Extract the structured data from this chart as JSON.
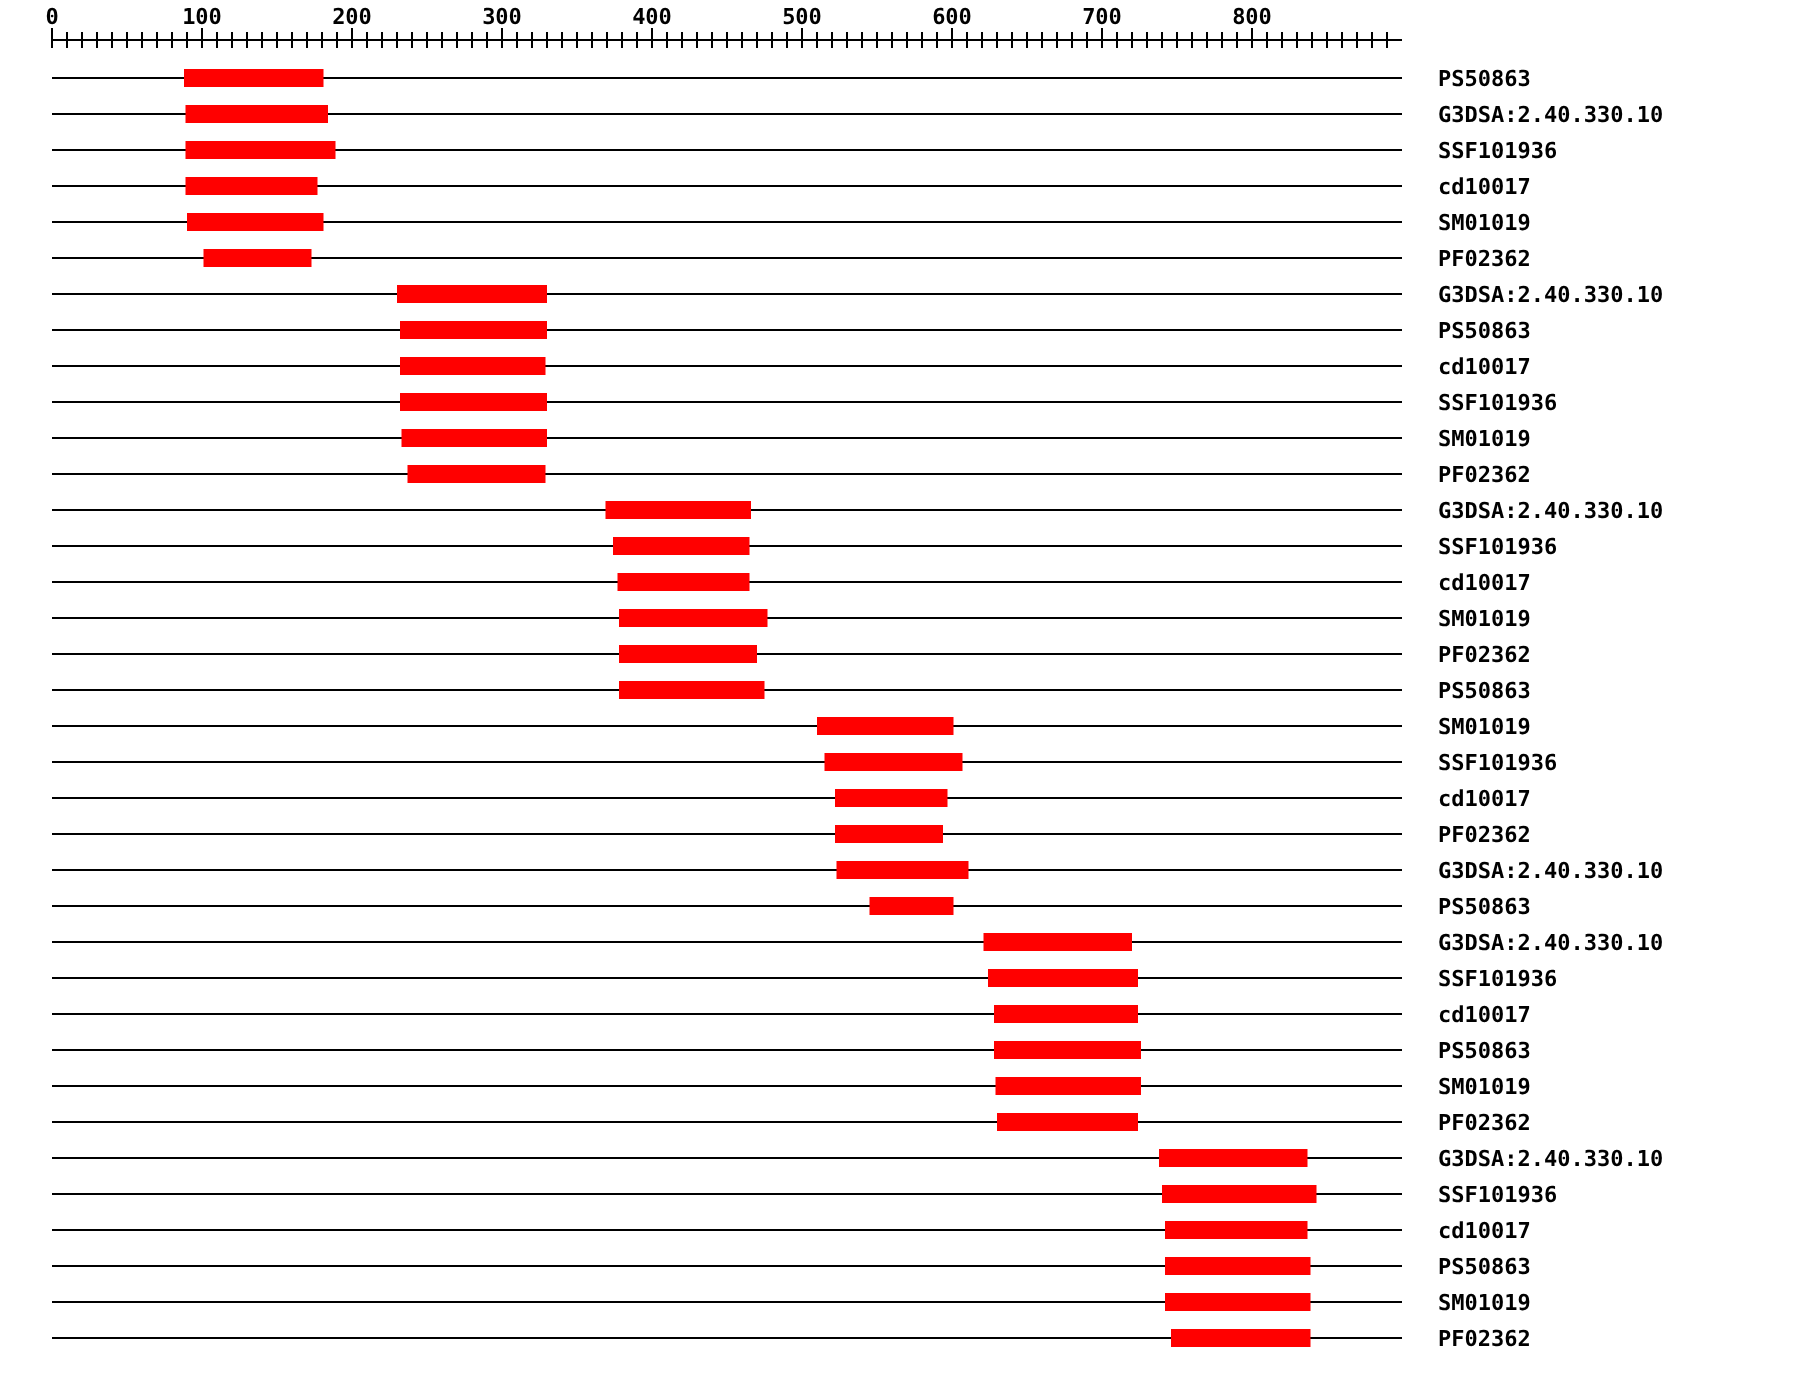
{
  "chart_data": {
    "type": "bar",
    "orientation": "horizontal",
    "categories": [
      "PS50863",
      "G3DSA:2.40.330.10",
      "SSF101936",
      "cd10017",
      "SM01019",
      "PF02362",
      "G3DSA:2.40.330.10",
      "PS50863",
      "cd10017",
      "SSF101936",
      "SM01019",
      "PF02362",
      "G3DSA:2.40.330.10",
      "SSF101936",
      "cd10017",
      "SM01019",
      "PF02362",
      "PS50863",
      "SM01019",
      "SSF101936",
      "cd10017",
      "PF02362",
      "G3DSA:2.40.330.10",
      "PS50863",
      "G3DSA:2.40.330.10",
      "SSF101936",
      "cd10017",
      "PS50863",
      "SM01019",
      "PF02362",
      "G3DSA:2.40.330.10",
      "SSF101936",
      "cd10017",
      "PS50863",
      "SM01019",
      "PF02362"
    ],
    "base": [
      88,
      89,
      89,
      89,
      90,
      101,
      230,
      232,
      232,
      232,
      233,
      237,
      369,
      374,
      377,
      378,
      378,
      378,
      510,
      515,
      522,
      522,
      523,
      545,
      621,
      624,
      628,
      628,
      629,
      630,
      738,
      740,
      742,
      742,
      742,
      746
    ],
    "values": [
      93,
      95,
      100,
      88,
      91,
      72,
      100,
      98,
      97,
      98,
      97,
      92,
      97,
      91,
      88,
      99,
      92,
      97,
      91,
      92,
      75,
      72,
      88,
      56,
      99,
      100,
      96,
      98,
      97,
      94,
      99,
      103,
      95,
      97,
      97,
      93
    ],
    "color": "#ff0000",
    "xlim": [
      0,
      900
    ],
    "xticks": [
      0,
      {
        "value": 10,
        "label": null
      },
      {
        "value": 20,
        "label": null
      },
      {
        "value": 30,
        "label": null
      },
      {
        "value": 40,
        "label": null
      },
      {
        "value": 50,
        "label": null
      },
      {
        "value": 60,
        "label": null
      },
      {
        "value": 70,
        "label": null
      },
      {
        "value": 80,
        "label": null
      },
      {
        "value": 90,
        "label": null
      },
      100,
      {
        "value": 110,
        "label": null
      },
      {
        "value": 120,
        "label": null
      },
      {
        "value": 130,
        "label": null
      },
      {
        "value": 140,
        "label": null
      },
      {
        "value": 150,
        "label": null
      },
      {
        "value": 160,
        "label": null
      },
      {
        "value": 170,
        "label": null
      },
      {
        "value": 180,
        "label": null
      },
      {
        "value": 190,
        "label": null
      },
      200,
      {
        "value": 210,
        "label": null
      },
      {
        "value": 220,
        "label": null
      },
      {
        "value": 230,
        "label": null
      },
      {
        "value": 240,
        "label": null
      },
      {
        "value": 250,
        "label": null
      },
      {
        "value": 260,
        "label": null
      },
      {
        "value": 270,
        "label": null
      },
      {
        "value": 280,
        "label": null
      },
      {
        "value": 290,
        "label": null
      },
      300,
      {
        "value": 310,
        "label": null
      },
      {
        "value": 320,
        "label": null
      },
      {
        "value": 330,
        "label": null
      },
      {
        "value": 340,
        "label": null
      },
      {
        "value": 350,
        "label": null
      },
      {
        "value": 360,
        "label": null
      },
      {
        "value": 370,
        "label": null
      },
      {
        "value": 380,
        "label": null
      },
      {
        "value": 390,
        "label": null
      },
      400,
      {
        "value": 410,
        "label": null
      },
      {
        "value": 420,
        "label": null
      },
      {
        "value": 430,
        "label": null
      },
      {
        "value": 440,
        "label": null
      },
      {
        "value": 450,
        "label": null
      },
      {
        "value": 460,
        "label": null
      },
      {
        "value": 470,
        "label": null
      },
      {
        "value": 480,
        "label": null
      },
      {
        "value": 490,
        "label": null
      },
      500,
      {
        "value": 510,
        "label": null
      },
      {
        "value": 520,
        "label": null
      },
      {
        "value": 530,
        "label": null
      },
      {
        "value": 540,
        "label": null
      },
      {
        "value": 550,
        "label": null
      },
      {
        "value": 560,
        "label": null
      },
      {
        "value": 570,
        "label": null
      },
      {
        "value": 580,
        "label": null
      },
      {
        "value": 590,
        "label": null
      },
      600,
      {
        "value": 610,
        "label": null
      },
      {
        "value": 620,
        "label": null
      },
      {
        "value": 630,
        "label": null
      },
      {
        "value": 640,
        "label": null
      },
      {
        "value": 650,
        "label": null
      },
      {
        "value": 660,
        "label": null
      },
      {
        "value": 670,
        "label": null
      },
      {
        "value": 680,
        "label": null
      },
      {
        "value": 690,
        "label": null
      },
      700,
      {
        "value": 710,
        "label": null
      },
      {
        "value": 720,
        "label": null
      },
      {
        "value": 730,
        "label": null
      },
      {
        "value": 740,
        "label": null
      },
      {
        "value": 750,
        "label": null
      },
      {
        "value": 760,
        "label": null
      },
      {
        "value": 770,
        "label": null
      },
      {
        "value": 780,
        "label": null
      },
      {
        "value": 790,
        "label": null
      },
      800,
      {
        "value": 810,
        "label": null
      },
      {
        "value": 820,
        "label": null
      },
      {
        "value": 830,
        "label": null
      },
      {
        "value": 840,
        "label": null
      },
      {
        "value": 850,
        "label": null
      },
      {
        "value": 860,
        "label": null
      },
      {
        "value": 870,
        "label": null
      },
      {
        "value": 880,
        "label": null
      },
      {
        "value": 890,
        "label": null
      }
    ],
    "grid": "y"
  }
}
